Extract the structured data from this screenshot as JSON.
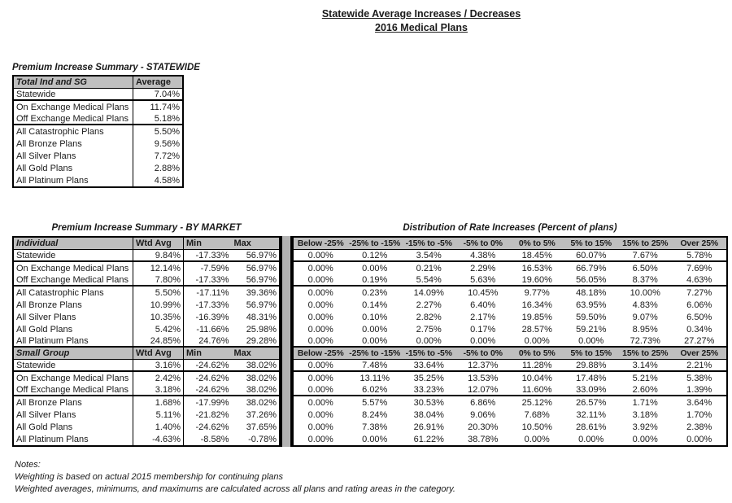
{
  "page_title": {
    "line1": "Statewide Average Increases / Decreases",
    "line2": "2016 Medical Plans"
  },
  "statewide_table": {
    "title": "Premium Increase Summary - STATEWIDE",
    "header": {
      "label": "Total Ind and SG",
      "value": "Average"
    },
    "rows": [
      {
        "label": "Statewide",
        "value": "7.04%",
        "sep": true
      },
      {
        "label": "On Exchange Medical Plans",
        "value": "11.74%",
        "sep": false
      },
      {
        "label": "Off Exchange Medical Plans",
        "value": "5.18%",
        "sep": true
      },
      {
        "label": "All Catastrophic Plans",
        "value": "5.50%",
        "sep": false
      },
      {
        "label": "All Bronze Plans",
        "value": "9.56%",
        "sep": false
      },
      {
        "label": "All Silver Plans",
        "value": "7.72%",
        "sep": false
      },
      {
        "label": "All Gold Plans",
        "value": "2.88%",
        "sep": false
      },
      {
        "label": "All Platinum Plans",
        "value": "4.58%",
        "sep": false
      }
    ]
  },
  "by_market": {
    "title": "Premium Increase Summary - BY MARKET",
    "col_headers": {
      "wtd_avg": "Wtd Avg",
      "min": "Min",
      "max": "Max"
    },
    "sections": [
      {
        "name": "Individual",
        "rows": [
          {
            "label": "Statewide",
            "wtd_avg": "9.84%",
            "min": "-17.33%",
            "max": "56.97%",
            "sep": true
          },
          {
            "label": "On Exchange Medical Plans",
            "wtd_avg": "12.14%",
            "min": "-7.59%",
            "max": "56.97%",
            "sep": false
          },
          {
            "label": "Off Exchange Medical Plans",
            "wtd_avg": "7.80%",
            "min": "-17.33%",
            "max": "56.97%",
            "sep": true
          },
          {
            "label": "All Catastrophic Plans",
            "wtd_avg": "5.50%",
            "min": "-17.11%",
            "max": "39.36%",
            "sep": false
          },
          {
            "label": "All Bronze Plans",
            "wtd_avg": "10.99%",
            "min": "-17.33%",
            "max": "56.97%",
            "sep": false
          },
          {
            "label": "All Silver Plans",
            "wtd_avg": "10.35%",
            "min": "-16.39%",
            "max": "48.31%",
            "sep": false
          },
          {
            "label": "All Gold Plans",
            "wtd_avg": "5.42%",
            "min": "-11.66%",
            "max": "25.98%",
            "sep": false
          },
          {
            "label": "All Platinum Plans",
            "wtd_avg": "24.85%",
            "min": "24.76%",
            "max": "29.28%",
            "sep": true
          }
        ]
      },
      {
        "name": "Small Group",
        "rows": [
          {
            "label": "Statewide",
            "wtd_avg": "3.16%",
            "min": "-24.62%",
            "max": "38.02%",
            "sep": true
          },
          {
            "label": "On Exchange Medical Plans",
            "wtd_avg": "2.42%",
            "min": "-24.62%",
            "max": "38.02%",
            "sep": false
          },
          {
            "label": "Off Exchange Medical Plans",
            "wtd_avg": "3.18%",
            "min": "-24.62%",
            "max": "38.02%",
            "sep": true
          },
          {
            "label": "All Bronze Plans",
            "wtd_avg": "1.68%",
            "min": "-17.99%",
            "max": "38.02%",
            "sep": false
          },
          {
            "label": "All Silver Plans",
            "wtd_avg": "5.11%",
            "min": "-21.82%",
            "max": "37.26%",
            "sep": false
          },
          {
            "label": "All Gold Plans",
            "wtd_avg": "1.40%",
            "min": "-24.62%",
            "max": "37.65%",
            "sep": false
          },
          {
            "label": "All Platinum Plans",
            "wtd_avg": "-4.63%",
            "min": "-8.58%",
            "max": "-0.78%",
            "sep": false
          }
        ]
      }
    ]
  },
  "distribution": {
    "title": "Distribution of Rate Increases (Percent of plans)",
    "col_headers": [
      "Below -25%",
      "-25% to -15%",
      "-15% to -5%",
      "-5% to 0%",
      "0% to 5%",
      "5% to 15%",
      "15% to 25%",
      "Over 25%"
    ],
    "sections": [
      {
        "rows": [
          {
            "values": [
              "0.00%",
              "0.12%",
              "3.54%",
              "4.38%",
              "18.45%",
              "60.07%",
              "7.67%",
              "5.78%"
            ],
            "sep": true
          },
          {
            "values": [
              "0.00%",
              "0.00%",
              "0.21%",
              "2.29%",
              "16.53%",
              "66.79%",
              "6.50%",
              "7.69%"
            ],
            "sep": false
          },
          {
            "values": [
              "0.00%",
              "0.19%",
              "5.54%",
              "5.63%",
              "19.60%",
              "56.05%",
              "8.37%",
              "4.63%"
            ],
            "sep": true
          },
          {
            "values": [
              "0.00%",
              "0.23%",
              "14.09%",
              "10.45%",
              "9.77%",
              "48.18%",
              "10.00%",
              "7.27%"
            ],
            "sep": false
          },
          {
            "values": [
              "0.00%",
              "0.14%",
              "2.27%",
              "6.40%",
              "16.34%",
              "63.95%",
              "4.83%",
              "6.06%"
            ],
            "sep": false
          },
          {
            "values": [
              "0.00%",
              "0.10%",
              "2.82%",
              "2.17%",
              "19.85%",
              "59.50%",
              "9.07%",
              "6.50%"
            ],
            "sep": false
          },
          {
            "values": [
              "0.00%",
              "0.00%",
              "2.75%",
              "0.17%",
              "28.57%",
              "59.21%",
              "8.95%",
              "0.34%"
            ],
            "sep": false
          },
          {
            "values": [
              "0.00%",
              "0.00%",
              "0.00%",
              "0.00%",
              "0.00%",
              "0.00%",
              "72.73%",
              "27.27%"
            ],
            "sep": true
          }
        ]
      },
      {
        "rows": [
          {
            "values": [
              "0.00%",
              "7.48%",
              "33.64%",
              "12.37%",
              "11.28%",
              "29.88%",
              "3.14%",
              "2.21%"
            ],
            "sep": true
          },
          {
            "values": [
              "0.00%",
              "13.11%",
              "35.25%",
              "13.53%",
              "10.04%",
              "17.48%",
              "5.21%",
              "5.38%"
            ],
            "sep": false
          },
          {
            "values": [
              "0.00%",
              "6.02%",
              "33.23%",
              "12.07%",
              "11.60%",
              "33.09%",
              "2.60%",
              "1.39%"
            ],
            "sep": true
          },
          {
            "values": [
              "0.00%",
              "5.57%",
              "30.53%",
              "6.86%",
              "25.12%",
              "26.57%",
              "1.71%",
              "3.64%"
            ],
            "sep": false
          },
          {
            "values": [
              "0.00%",
              "8.24%",
              "38.04%",
              "9.06%",
              "7.68%",
              "32.11%",
              "3.18%",
              "1.70%"
            ],
            "sep": false
          },
          {
            "values": [
              "0.00%",
              "7.38%",
              "26.91%",
              "20.30%",
              "10.50%",
              "28.61%",
              "3.92%",
              "2.38%"
            ],
            "sep": false
          },
          {
            "values": [
              "0.00%",
              "0.00%",
              "61.22%",
              "38.78%",
              "0.00%",
              "0.00%",
              "0.00%",
              "0.00%"
            ],
            "sep": false
          }
        ]
      }
    ]
  },
  "notes": {
    "heading": "Notes:",
    "lines": [
      "Weighting is based on actual 2015 membership for continuing plans",
      "Weighted averages, minimums, and maximums are calculated across all plans and rating areas in the category."
    ]
  },
  "colors": {
    "header_bg": "#bfbfbf",
    "divider_bg": "#b3b3b3",
    "border": "#000000"
  }
}
